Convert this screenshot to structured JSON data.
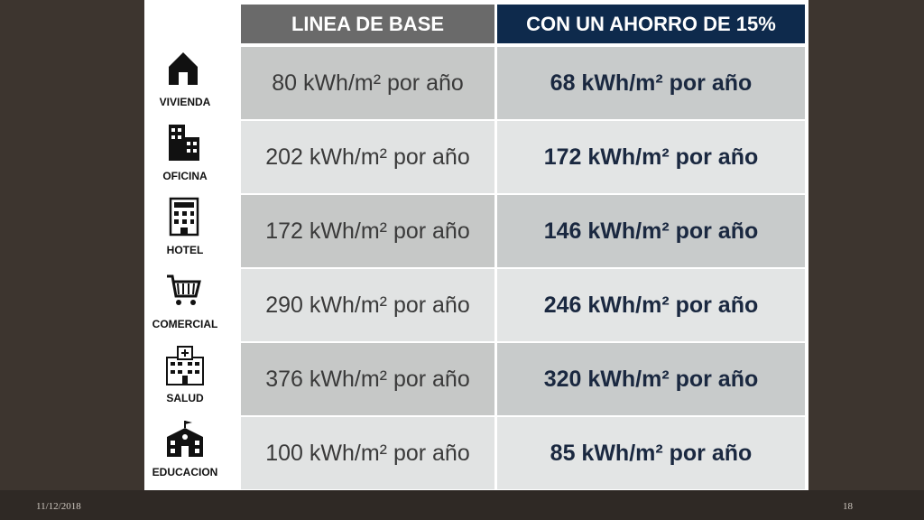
{
  "table": {
    "header": [
      "LINEA DE BASE",
      "CON UN AHORRO DE 15%"
    ],
    "rows": [
      [
        "VIVIENDA",
        "80 kWh/m² por año",
        "68 kWh/m² por año"
      ],
      [
        "OFICINA",
        "202 kWh/m² por año",
        "172 kWh/m² por año"
      ],
      [
        "HOTEL",
        "172 kWh/m² por año",
        "146 kWh/m² por año"
      ],
      [
        "COMERCIAL",
        "290 kWh/m² por año",
        "246 kWh/m² por año"
      ],
      [
        "SALUD",
        "376 kWh/m² por año",
        "320 kWh/m² por año"
      ],
      [
        "EDUCACION",
        "100 kWh/m² por año",
        "85 kWh/m² por año"
      ]
    ]
  },
  "footer": {
    "date": "11/12/2018",
    "page": "18"
  }
}
